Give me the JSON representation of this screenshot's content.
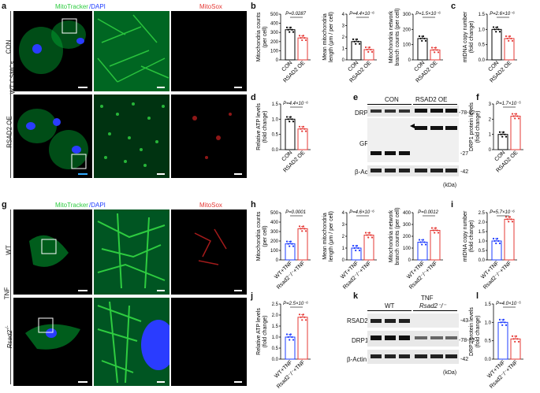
{
  "panels": {
    "a": "a",
    "b": "b",
    "c": "c",
    "d": "d",
    "e": "e",
    "f": "f",
    "g": "g",
    "h": "h",
    "i": "i",
    "j": "j",
    "k": "k",
    "l": "l"
  },
  "top": {
    "mito_label": "MitoTracker",
    "dapi_label": "/DAPI",
    "mitosox_label": "MitoSox",
    "cell_type": "WT CSMCs",
    "row1": "CON",
    "row2": "RSAD2 OE",
    "b1": {
      "ylabel1": "Mitochondria counts",
      "ylabel2": "(per cell)",
      "pval": "P=0.0287",
      "x1": "CON",
      "x2": "RSAD2 OE",
      "yticks": [
        "0",
        "100",
        "200",
        "300",
        "400",
        "500"
      ]
    },
    "b2": {
      "ylabel1": "Mean mitochondria",
      "ylabel2": "length (μm / per cell)",
      "pval": "P=4.4×10⁻⁶",
      "x1": "CON",
      "x2": "RSAD2 OE",
      "yticks": [
        "0",
        "1",
        "2",
        "3",
        "4"
      ]
    },
    "b3": {
      "ylabel1": "Mitochondria network",
      "ylabel2": "branch counts (per cell)",
      "pval": "P=1.5×10⁻⁶",
      "x1": "CON",
      "x2": "RSAD2 OE",
      "yticks": [
        "0",
        "100",
        "200",
        "300"
      ]
    },
    "c": {
      "ylabel1": "mtDNA copy number",
      "ylabel2": "(fold change)",
      "pval": "P=2.6×10⁻⁶",
      "x1": "CON",
      "x2": "RSAD2 OE",
      "yticks": [
        "0.0",
        "0.5",
        "1.0",
        "1.5"
      ]
    },
    "d": {
      "ylabel1": "Relative ATP levels",
      "ylabel2": "(fold change)",
      "pval": "P=4.4×10⁻⁶",
      "x1": "CON",
      "x2": "RSAD2 OE",
      "yticks": [
        "0.0",
        "0.5",
        "1.0",
        "1.5"
      ]
    },
    "e": {
      "group1": "CON",
      "group2": "RSAD2 OE",
      "drp1": "DRP1",
      "gfp": "GFP",
      "actin": "β-Actin",
      "mw1": "-78-82",
      "mw2": "-27",
      "mw3": "-42",
      "unit": "(kDa)"
    },
    "f": {
      "ylabel1": "DRP1 protein levels",
      "ylabel2": "(fold change)",
      "pval": "P=1.7×10⁻⁵",
      "x1": "CON",
      "x2": "RSAD2 OE",
      "yticks": [
        "0",
        "1",
        "2",
        "3"
      ]
    }
  },
  "bottom": {
    "mito_label": "MitoTracker",
    "dapi_label": "/DAPI",
    "mitosox_label": "MitoSox",
    "treatment": "TNF",
    "row1": "WT",
    "row2": "Rsad2",
    "row2_sup": "-/-",
    "h1": {
      "ylabel1": "Mitochondria counts",
      "ylabel2": "(per cell)",
      "pval": "P=0.0001",
      "x1": "WT+TNF",
      "x2": "Rsad2⁻/⁻+TNF",
      "yticks": [
        "0",
        "100",
        "200",
        "300",
        "400",
        "500"
      ]
    },
    "h2": {
      "ylabel1": "Mean mitochondria",
      "ylabel2": "length (μm / per cell)",
      "pval": "P=4.6×10⁻⁶",
      "x1": "WT+TNF",
      "x2": "Rsad2⁻/⁻+TNF",
      "yticks": [
        "0",
        "1",
        "2",
        "3",
        "4"
      ]
    },
    "h3": {
      "ylabel1": "Mitochondria network",
      "ylabel2": "branch counts (per cell)",
      "pval": "P=0.0012",
      "x1": "WT+TNF",
      "x2": "Rsad2⁻/⁻+TNF",
      "yticks": [
        "0",
        "100",
        "200",
        "300",
        "400"
      ]
    },
    "i": {
      "ylabel1": "mtDNA copy number",
      "ylabel2": "(fold change)",
      "pval": "P=5.7×10⁻⁶",
      "x1": "WT+TNF",
      "x2": "Rsad2⁻/⁻+TNF",
      "yticks": [
        "0.0",
        "0.5",
        "1.0",
        "1.5",
        "2.0",
        "2.5"
      ]
    },
    "j": {
      "ylabel1": "Relative ATP levels",
      "ylabel2": "(fold change)",
      "pval": "P=2.5×10⁻⁶",
      "x1": "WT+TNF",
      "x2": "Rsad2⁻/⁻+TNF",
      "yticks": [
        "0.0",
        "0.5",
        "1.0",
        "1.5",
        "2.0",
        "2.5"
      ]
    },
    "k": {
      "treatment": "TNF",
      "group1": "WT",
      "group2": "Rsad2⁻/⁻",
      "rsad2": "RSAD2",
      "drp1": "DRP1",
      "actin": "β-Actin",
      "mw1": "-43",
      "mw2": "-78-82",
      "mw3": "-42",
      "unit": "(kDa)"
    },
    "l": {
      "ylabel1": "DRP1 protein levels",
      "ylabel2": "(fold change)",
      "pval": "P=4.0×10⁻⁵",
      "x1": "WT+TNF",
      "x2": "Rsad2⁻/⁻+TNF",
      "yticks": [
        "0.0",
        "0.5",
        "1.0",
        "1.5"
      ]
    }
  },
  "chart_data": [
    {
      "id": "b1",
      "type": "bar",
      "categories": [
        "CON",
        "RSAD2 OE"
      ],
      "values": [
        330,
        240
      ],
      "ylim": [
        0,
        500
      ],
      "colors": [
        "#000000",
        "#e53935"
      ]
    },
    {
      "id": "b2",
      "type": "bar",
      "categories": [
        "CON",
        "RSAD2 OE"
      ],
      "values": [
        1.6,
        0.9
      ],
      "ylim": [
        0,
        4
      ],
      "colors": [
        "#000000",
        "#e53935"
      ]
    },
    {
      "id": "b3",
      "type": "bar",
      "categories": [
        "CON",
        "RSAD2 OE"
      ],
      "values": [
        140,
        65
      ],
      "ylim": [
        0,
        300
      ],
      "colors": [
        "#000000",
        "#e53935"
      ]
    },
    {
      "id": "c",
      "type": "bar",
      "categories": [
        "CON",
        "RSAD2 OE"
      ],
      "values": [
        1.0,
        0.7
      ],
      "ylim": [
        0,
        1.5
      ],
      "colors": [
        "#000000",
        "#e53935"
      ]
    },
    {
      "id": "d",
      "type": "bar",
      "categories": [
        "CON",
        "RSAD2 OE"
      ],
      "values": [
        1.0,
        0.68
      ],
      "ylim": [
        0,
        1.5
      ],
      "colors": [
        "#000000",
        "#e53935"
      ]
    },
    {
      "id": "f",
      "type": "bar",
      "categories": [
        "CON",
        "RSAD2 OE"
      ],
      "values": [
        1.0,
        2.2
      ],
      "ylim": [
        0,
        3
      ],
      "colors": [
        "#000000",
        "#e53935"
      ]
    },
    {
      "id": "h1",
      "type": "bar",
      "categories": [
        "WT+TNF",
        "Rsad2-/-+TNF"
      ],
      "values": [
        170,
        330
      ],
      "ylim": [
        0,
        500
      ],
      "colors": [
        "#1e3cff",
        "#e53935"
      ]
    },
    {
      "id": "h2",
      "type": "bar",
      "categories": [
        "WT+TNF",
        "Rsad2-/-+TNF"
      ],
      "values": [
        1.0,
        2.1
      ],
      "ylim": [
        0,
        4
      ],
      "colors": [
        "#1e3cff",
        "#e53935"
      ]
    },
    {
      "id": "h3",
      "type": "bar",
      "categories": [
        "WT+TNF",
        "Rsad2-/-+TNF"
      ],
      "values": [
        150,
        250
      ],
      "ylim": [
        0,
        400
      ],
      "colors": [
        "#1e3cff",
        "#e53935"
      ]
    },
    {
      "id": "i",
      "type": "bar",
      "categories": [
        "WT+TNF",
        "Rsad2-/-+TNF"
      ],
      "values": [
        1.0,
        2.15
      ],
      "ylim": [
        0,
        2.5
      ],
      "colors": [
        "#1e3cff",
        "#e53935"
      ]
    },
    {
      "id": "j",
      "type": "bar",
      "categories": [
        "WT+TNF",
        "Rsad2-/-+TNF"
      ],
      "values": [
        1.0,
        1.9
      ],
      "ylim": [
        0,
        2.5
      ],
      "colors": [
        "#1e3cff",
        "#e53935"
      ]
    },
    {
      "id": "l",
      "type": "bar",
      "categories": [
        "WT+TNF",
        "Rsad2-/-+TNF"
      ],
      "values": [
        1.0,
        0.55
      ],
      "ylim": [
        0,
        1.5
      ],
      "colors": [
        "#1e3cff",
        "#e53935"
      ]
    }
  ]
}
